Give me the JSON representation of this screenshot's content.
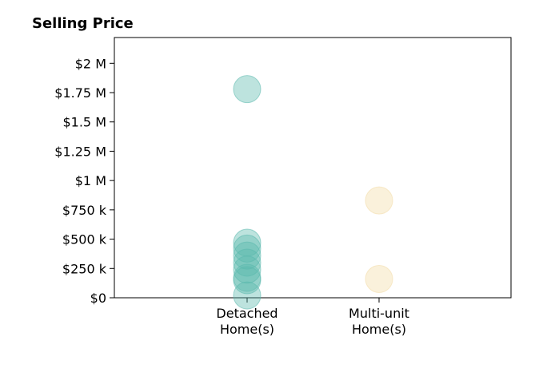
{
  "chart_data": {
    "type": "scatter",
    "title": "Selling Price",
    "xlabel": "",
    "ylabel": "",
    "categories": [
      {
        "label_lines": [
          "Detached",
          "Home(s)"
        ]
      },
      {
        "label_lines": [
          "Multi-unit",
          "Home(s)"
        ]
      }
    ],
    "series": [
      {
        "category_index": 0,
        "color": "#5ab8ad",
        "values": [
          1780000,
          470000,
          420000,
          360000,
          300000,
          240000,
          170000,
          150000,
          20000
        ]
      },
      {
        "category_index": 1,
        "color": "#f3dba5",
        "values": [
          830000,
          160000
        ]
      }
    ],
    "y_ticks": [
      {
        "value": 0,
        "label": "$0"
      },
      {
        "value": 250000,
        "label": "$250 k"
      },
      {
        "value": 500000,
        "label": "$500 k"
      },
      {
        "value": 750000,
        "label": "$750 k"
      },
      {
        "value": 1000000,
        "label": "$1 M"
      },
      {
        "value": 1250000,
        "label": "$1.25 M"
      },
      {
        "value": 1500000,
        "label": "$1.5 M"
      },
      {
        "value": 1750000,
        "label": "$1.75 M"
      },
      {
        "value": 2000000,
        "label": "$2 M"
      }
    ],
    "ylim": [
      0,
      2220000
    ],
    "grid": false,
    "legend": "none"
  }
}
